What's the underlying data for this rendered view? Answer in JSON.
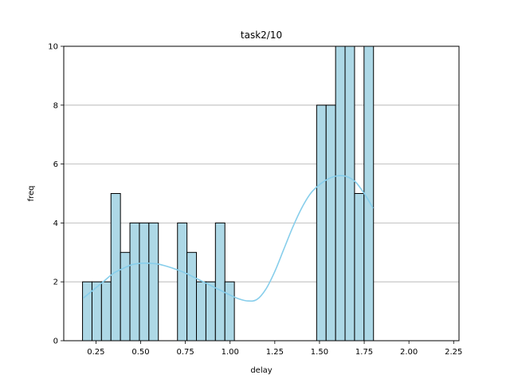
{
  "chart_data": {
    "type": "bar",
    "subtype": "histogram",
    "title": "task2/10",
    "xlabel": "delay",
    "ylabel": "freq",
    "xlim": [
      0.07,
      2.28
    ],
    "ylim": [
      0,
      10
    ],
    "xticks": [
      0.25,
      0.5,
      0.75,
      1.0,
      1.25,
      1.5,
      1.75,
      2.0,
      2.25
    ],
    "xtick_labels": [
      "0.25",
      "0.50",
      "0.75",
      "1.00",
      "1.25",
      "1.50",
      "1.75",
      "2.00",
      "2.25"
    ],
    "yticks": [
      0,
      2,
      4,
      6,
      8,
      10
    ],
    "ytick_labels": [
      "0",
      "2",
      "4",
      "6",
      "8",
      "10"
    ],
    "grid": "horizontal",
    "bar_color": "#add8e6",
    "edge_color": "#000000",
    "kde_color": "#87ceeb",
    "bins": [
      {
        "x0": 0.175,
        "x1": 0.228,
        "count": 2
      },
      {
        "x0": 0.228,
        "x1": 0.281,
        "count": 2
      },
      {
        "x0": 0.281,
        "x1": 0.334,
        "count": 2
      },
      {
        "x0": 0.334,
        "x1": 0.387,
        "count": 5
      },
      {
        "x0": 0.387,
        "x1": 0.44,
        "count": 3
      },
      {
        "x0": 0.44,
        "x1": 0.493,
        "count": 4
      },
      {
        "x0": 0.493,
        "x1": 0.546,
        "count": 4
      },
      {
        "x0": 0.546,
        "x1": 0.599,
        "count": 4
      },
      {
        "x0": 0.706,
        "x1": 0.759,
        "count": 4
      },
      {
        "x0": 0.759,
        "x1": 0.812,
        "count": 3
      },
      {
        "x0": 0.812,
        "x1": 0.865,
        "count": 2
      },
      {
        "x0": 0.865,
        "x1": 0.918,
        "count": 2
      },
      {
        "x0": 0.918,
        "x1": 0.971,
        "count": 4
      },
      {
        "x0": 0.971,
        "x1": 1.024,
        "count": 2
      },
      {
        "x0": 1.484,
        "x1": 1.537,
        "count": 8
      },
      {
        "x0": 1.537,
        "x1": 1.59,
        "count": 8
      },
      {
        "x0": 1.59,
        "x1": 1.643,
        "count": 10
      },
      {
        "x0": 1.643,
        "x1": 1.696,
        "count": 10
      },
      {
        "x0": 1.696,
        "x1": 1.749,
        "count": 5
      },
      {
        "x0": 1.749,
        "x1": 1.802,
        "count": 10
      }
    ],
    "kde": {
      "x": [
        0.18,
        0.25,
        0.3,
        0.35,
        0.4,
        0.45,
        0.5,
        0.55,
        0.6,
        0.65,
        0.7,
        0.75,
        0.8,
        0.85,
        0.9,
        0.95,
        1.0,
        1.05,
        1.1,
        1.15,
        1.2,
        1.25,
        1.3,
        1.35,
        1.4,
        1.45,
        1.5,
        1.55,
        1.6,
        1.65,
        1.7,
        1.75,
        1.8
      ],
      "y": [
        1.45,
        1.8,
        2.05,
        2.3,
        2.45,
        2.58,
        2.63,
        2.63,
        2.6,
        2.52,
        2.42,
        2.3,
        2.15,
        2.0,
        1.85,
        1.7,
        1.55,
        1.42,
        1.35,
        1.4,
        1.75,
        2.35,
        3.1,
        3.85,
        4.5,
        5.0,
        5.3,
        5.5,
        5.6,
        5.58,
        5.4,
        5.0,
        4.5
      ]
    }
  }
}
